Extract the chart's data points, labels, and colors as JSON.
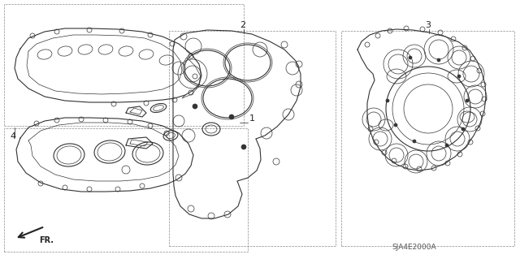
{
  "bg_color": "#ffffff",
  "line_color": "#333333",
  "part_number": "SJA4E2000A",
  "fig_width": 6.4,
  "fig_height": 3.19,
  "dpi": 100
}
